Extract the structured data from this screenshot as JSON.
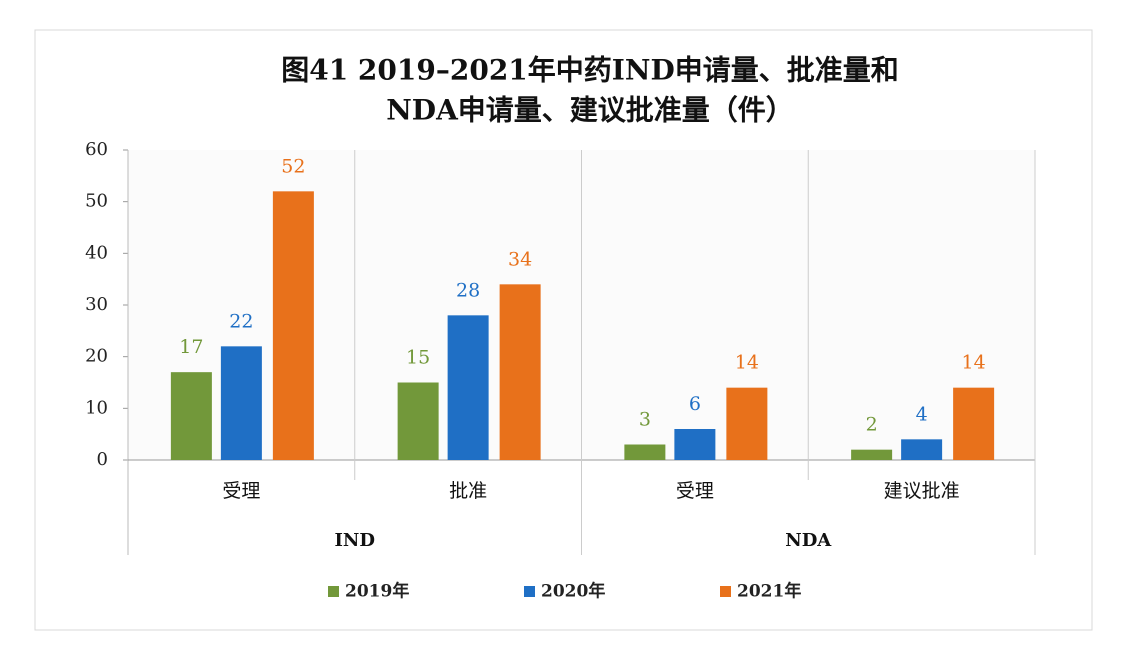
{
  "chart_data": {
    "type": "bar",
    "title": [
      "图41  2019–2021年中药IND申请量、批准量和",
      "NDA申请量、建议批准量（件）"
    ],
    "groups": [
      {
        "name": "IND",
        "categories": [
          "受理",
          "批准"
        ]
      },
      {
        "name": "NDA",
        "categories": [
          "受理",
          "建议批准"
        ]
      }
    ],
    "series": [
      {
        "name": "2019年",
        "color": "#72983a",
        "values": [
          17,
          15,
          3,
          2
        ]
      },
      {
        "name": "2020年",
        "color": "#1f6fc5",
        "values": [
          22,
          28,
          6,
          4
        ]
      },
      {
        "name": "2021年",
        "color": "#e8711b",
        "values": [
          52,
          34,
          14,
          14
        ]
      }
    ],
    "ylim": [
      0,
      60
    ],
    "yticks": [
      0,
      10,
      20,
      30,
      40,
      50,
      60
    ],
    "legend": "bottom"
  }
}
